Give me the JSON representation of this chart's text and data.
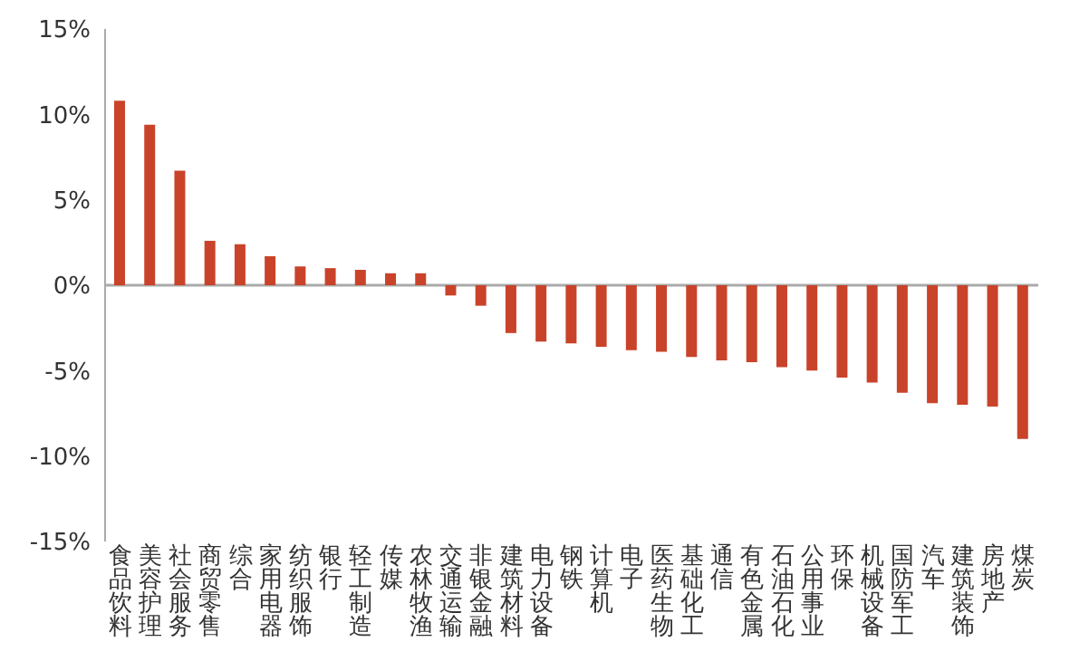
{
  "chart_data": {
    "type": "bar",
    "categories": [
      "食品饮料",
      "美容护理",
      "社会服务",
      "商贸零售",
      "综合",
      "家用电器",
      "纺织服饰",
      "银行",
      "轻工制造",
      "传媒",
      "农林牧渔",
      "交通运输",
      "非银金融",
      "建筑材料",
      "电力设备",
      "钢铁",
      "计算机",
      "电子",
      "医药生物",
      "基础化工",
      "通信",
      "有色金属",
      "石油石化",
      "公用事业",
      "环保",
      "机械设备",
      "国防军工",
      "汽车",
      "建筑装饰",
      "房地产",
      "煤炭"
    ],
    "series": [
      {
        "color": "#c9432a",
        "values": [
          10.8,
          9.4,
          6.7,
          2.6,
          2.4,
          1.7,
          1.1,
          1.0,
          0.9,
          0.7,
          0.7,
          -0.6,
          -1.2,
          -2.8,
          -3.3,
          -3.4,
          -3.6,
          -3.8,
          -3.9,
          -4.2,
          -4.4,
          -4.5,
          -4.8,
          -5.0,
          -5.4,
          -5.7,
          -6.3,
          -6.9,
          -7.0,
          -7.1,
          -9.0
        ]
      }
    ],
    "ylim": [
      -15,
      15
    ],
    "yticks": [
      {
        "value": -15,
        "label": "-15%"
      },
      {
        "value": -10,
        "label": "-10%"
      },
      {
        "value": -5,
        "label": "-5%"
      },
      {
        "value": 0,
        "label": "0%"
      },
      {
        "value": 5,
        "label": "5%"
      },
      {
        "value": 10,
        "label": "10%"
      },
      {
        "value": 15,
        "label": "15%"
      }
    ],
    "legend": false
  }
}
